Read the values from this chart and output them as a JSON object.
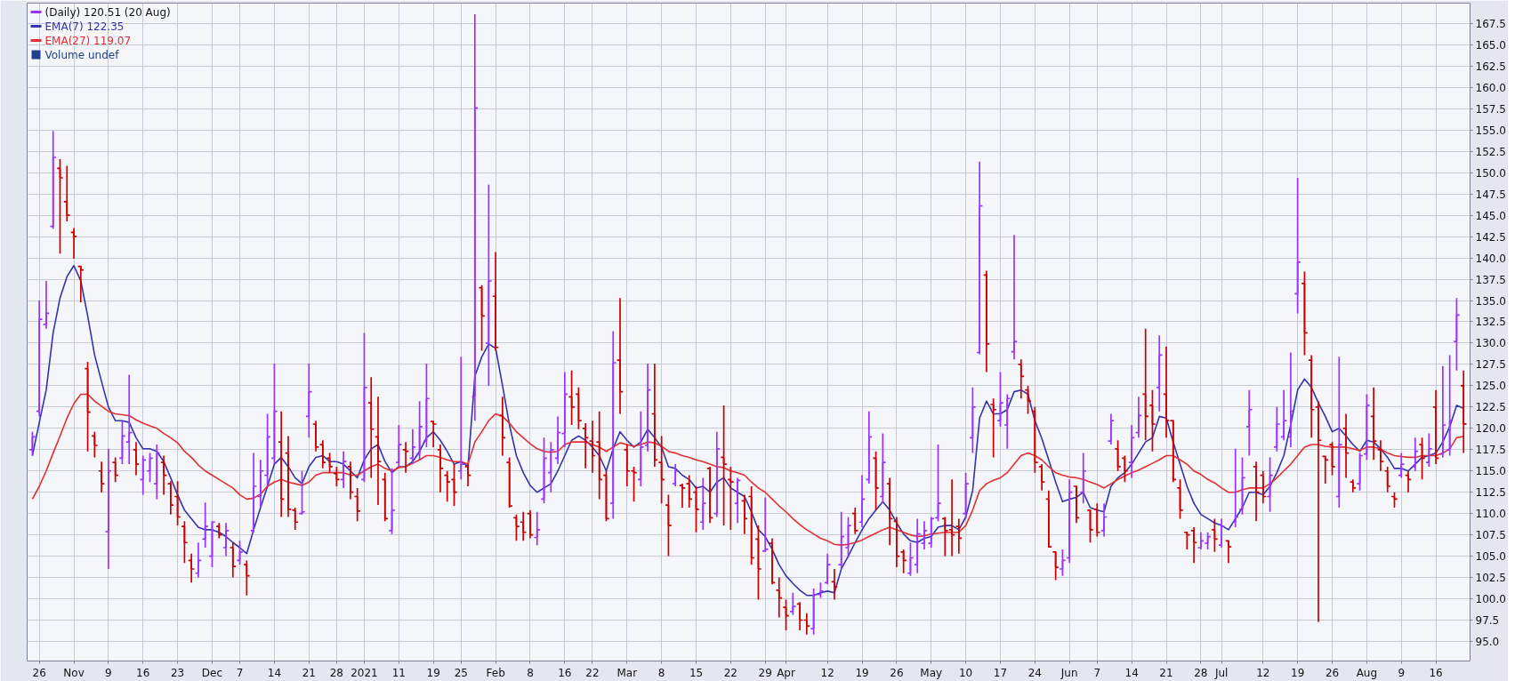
{
  "chart_data": {
    "type": "candlestick",
    "title": "(Daily) 120.51 (20 Aug)",
    "categories": [
      null,
      "26",
      null,
      null,
      null,
      null,
      "Nov",
      null,
      null,
      null,
      null,
      "9",
      null,
      null,
      null,
      null,
      "16",
      null,
      null,
      null,
      null,
      "23",
      null,
      null,
      null,
      null,
      "Dec",
      null,
      null,
      null,
      "7",
      null,
      null,
      null,
      null,
      "14",
      null,
      null,
      null,
      null,
      "21",
      null,
      null,
      null,
      "28",
      null,
      null,
      null,
      "2021",
      null,
      null,
      null,
      null,
      "11",
      null,
      null,
      null,
      null,
      "19",
      null,
      null,
      null,
      "25",
      null,
      null,
      null,
      null,
      "Feb",
      null,
      null,
      null,
      null,
      "8",
      null,
      null,
      null,
      null,
      "16",
      null,
      null,
      null,
      "22",
      null,
      null,
      null,
      null,
      "Mar",
      null,
      null,
      null,
      null,
      "8",
      null,
      null,
      null,
      null,
      "15",
      null,
      null,
      null,
      null,
      "22",
      null,
      null,
      null,
      null,
      "29",
      null,
      null,
      "Apr",
      null,
      null,
      null,
      null,
      null,
      "12",
      null,
      null,
      null,
      null,
      "19",
      null,
      null,
      null,
      null,
      "26",
      null,
      null,
      null,
      null,
      "May",
      null,
      null,
      null,
      null,
      "10",
      null,
      null,
      null,
      null,
      "17",
      null,
      null,
      null,
      null,
      "24",
      null,
      null,
      null,
      null,
      "Jun",
      null,
      null,
      null,
      "7",
      null,
      null,
      null,
      null,
      "14",
      null,
      null,
      null,
      null,
      "21",
      null,
      null,
      null,
      null,
      "28",
      null,
      null,
      "Jul",
      null,
      null,
      null,
      null,
      null,
      "12",
      null,
      null,
      null,
      null,
      "19",
      null,
      null,
      null,
      null,
      "26",
      null,
      null,
      null,
      null,
      "Aug",
      null,
      null,
      null,
      null,
      "9",
      null,
      null,
      null,
      null,
      "16",
      null,
      null,
      null,
      null
    ],
    "ohlc": [
      [
        117.5,
        119.6,
        116.8,
        119.0
      ],
      [
        122.0,
        135.0,
        121.4,
        132.8
      ],
      [
        132.2,
        137.3,
        131.7,
        133.5
      ],
      [
        143.7,
        154.9,
        143.4,
        151.8
      ],
      [
        150.5,
        151.6,
        140.5,
        149.4
      ],
      [
        146.6,
        150.8,
        144.3,
        145.0
      ],
      [
        143.0,
        143.5,
        139.9,
        142.5
      ],
      [
        139.0,
        139.1,
        134.8,
        138.6
      ],
      [
        127.0,
        127.8,
        117.3,
        121.9
      ],
      [
        119.1,
        119.6,
        116.6,
        118.0
      ],
      [
        115.0,
        116.1,
        112.5,
        113.5
      ],
      [
        107.9,
        117.6,
        103.5,
        115.0
      ],
      [
        116.0,
        116.6,
        113.7,
        114.5
      ],
      [
        116.5,
        120.9,
        115.8,
        119.1
      ],
      [
        118.4,
        126.3,
        115.8,
        119.5
      ],
      [
        117.5,
        118.4,
        114.5,
        115.8
      ],
      [
        114.0,
        116.8,
        112.2,
        116.3
      ],
      [
        115.0,
        117.1,
        113.7,
        116.5
      ],
      [
        113.5,
        118.1,
        111.7,
        117.1
      ],
      [
        116.0,
        116.8,
        112.2,
        114.5
      ],
      [
        113.5,
        113.8,
        109.9,
        111.0
      ],
      [
        112.0,
        113.8,
        108.6,
        109.6
      ],
      [
        108.5,
        109.1,
        104.2,
        106.6
      ],
      [
        104.5,
        105.3,
        101.9,
        103.5
      ],
      [
        103.0,
        106.6,
        102.5,
        104.5
      ],
      [
        107.0,
        111.3,
        106.0,
        108.5
      ],
      [
        105.0,
        109.1,
        103.7,
        109.0
      ],
      [
        108.5,
        108.9,
        107.1,
        107.5
      ],
      [
        106.0,
        108.9,
        105.0,
        108.0
      ],
      [
        106.0,
        106.6,
        102.5,
        103.8
      ],
      [
        104.5,
        106.8,
        104.0,
        105.5
      ],
      [
        104.0,
        104.5,
        100.4,
        102.7
      ],
      [
        108.0,
        117.1,
        107.8,
        113.2
      ],
      [
        112.0,
        116.3,
        110.8,
        115.0
      ],
      [
        114.5,
        121.7,
        113.2,
        119.0
      ],
      [
        116.5,
        127.6,
        115.8,
        122.0
      ],
      [
        118.4,
        122.0,
        109.6,
        111.7
      ],
      [
        117.1,
        119.1,
        109.6,
        110.5
      ],
      [
        110.4,
        110.7,
        108.1,
        109.0
      ],
      [
        110.0,
        115.0,
        109.9,
        110.2
      ],
      [
        121.4,
        127.6,
        118.9,
        124.3
      ],
      [
        120.5,
        120.9,
        117.3,
        117.8
      ],
      [
        118.1,
        118.6,
        115.3,
        116.0
      ],
      [
        116.5,
        117.1,
        114.8,
        115.5
      ],
      [
        114.7,
        115.5,
        113.2,
        114.0
      ],
      [
        114.0,
        117.3,
        113.0,
        116.1
      ],
      [
        115.5,
        116.1,
        111.7,
        112.5
      ],
      [
        112.0,
        113.0,
        109.1,
        110.3
      ],
      [
        114.0,
        131.2,
        113.7,
        124.8
      ],
      [
        123.0,
        126.0,
        114.2,
        119.9
      ],
      [
        119.0,
        123.7,
        111.0,
        116.1
      ],
      [
        114.0,
        114.8,
        109.1,
        109.4
      ],
      [
        108.0,
        115.3,
        107.6,
        110.4
      ],
      [
        116.0,
        120.4,
        115.5,
        118.1
      ],
      [
        117.5,
        118.4,
        114.8,
        117.3
      ],
      [
        116.5,
        119.9,
        115.8,
        117.8
      ],
      [
        117.0,
        123.2,
        116.3,
        120.2
      ],
      [
        118.5,
        127.6,
        117.8,
        123.5
      ],
      [
        120.8,
        120.9,
        117.8,
        120.5
      ],
      [
        117.5,
        118.1,
        112.5,
        115.3
      ],
      [
        114.5,
        115.0,
        111.4,
        113.7
      ],
      [
        114.0,
        115.8,
        110.9,
        112.5
      ],
      [
        115.0,
        128.4,
        114.0,
        115.8
      ],
      [
        115.5,
        115.8,
        113.2,
        114.5
      ],
      [
        123.7,
        168.6,
        120.9,
        157.6
      ],
      [
        136.5,
        136.8,
        129.1,
        133.2
      ],
      [
        130.0,
        148.6,
        125.0,
        137.3
      ],
      [
        135.5,
        140.7,
        129.1,
        129.5
      ],
      [
        121.5,
        123.7,
        116.8,
        118.9
      ],
      [
        116.0,
        116.6,
        110.7,
        110.9
      ],
      [
        109.5,
        109.9,
        106.8,
        108.5
      ],
      [
        109.0,
        110.2,
        106.8,
        107.8
      ],
      [
        110.0,
        110.4,
        107.1,
        107.5
      ],
      [
        107.2,
        110.2,
        106.3,
        108.1
      ],
      [
        111.7,
        118.9,
        111.2,
        116.5
      ],
      [
        114.8,
        118.4,
        112.5,
        117.5
      ],
      [
        116.5,
        121.4,
        115.8,
        119.5
      ],
      [
        119.4,
        126.6,
        117.8,
        124.0
      ],
      [
        123.7,
        126.8,
        120.4,
        122.5
      ],
      [
        124.0,
        124.8,
        119.9,
        120.9
      ],
      [
        120.0,
        120.6,
        115.3,
        118.9
      ],
      [
        118.5,
        120.9,
        114.8,
        116.8
      ],
      [
        118.4,
        122.0,
        111.7,
        114.0
      ],
      [
        114.5,
        115.0,
        109.1,
        109.4
      ],
      [
        111.2,
        131.4,
        109.4,
        127.7
      ],
      [
        128.0,
        135.3,
        121.7,
        124.3
      ],
      [
        117.5,
        118.1,
        113.2,
        115.0
      ],
      [
        115.0,
        115.5,
        111.4,
        114.8
      ],
      [
        114.0,
        122.0,
        113.2,
        117.8
      ],
      [
        118.0,
        127.6,
        117.3,
        124.5
      ],
      [
        121.7,
        127.6,
        115.5,
        116.3
      ],
      [
        116.0,
        119.1,
        111.2,
        114.0
      ],
      [
        111.0,
        112.2,
        105.0,
        108.6
      ],
      [
        113.5,
        115.8,
        113.2,
        115.0
      ],
      [
        113.3,
        113.5,
        110.7,
        113.0
      ],
      [
        113.5,
        114.5,
        110.7,
        111.7
      ],
      [
        112.5,
        113.2,
        107.8,
        110.5
      ],
      [
        109.0,
        114.2,
        108.1,
        111.2
      ],
      [
        115.3,
        115.5,
        108.9,
        109.5
      ],
      [
        110.0,
        119.6,
        109.6,
        117.6
      ],
      [
        116.6,
        122.7,
        108.6,
        115.8
      ],
      [
        114.0,
        115.5,
        108.1,
        113.7
      ],
      [
        111.2,
        114.2,
        108.9,
        113.9
      ],
      [
        111.5,
        112.2,
        107.6,
        109.4
      ],
      [
        112.0,
        113.2,
        104.0,
        104.8
      ],
      [
        107.0,
        108.6,
        99.9,
        103.5
      ],
      [
        105.6,
        111.9,
        105.5,
        105.8
      ],
      [
        106.5,
        107.1,
        101.7,
        101.9
      ],
      [
        101.0,
        102.5,
        97.8,
        100.1
      ],
      [
        99.0,
        99.9,
        96.3,
        98.0
      ],
      [
        98.5,
        100.7,
        98.1,
        99.1
      ],
      [
        99.4,
        99.6,
        96.3,
        97.5
      ],
      [
        97.5,
        98.3,
        95.8,
        96.8
      ],
      [
        96.5,
        101.2,
        95.8,
        100.5
      ],
      [
        100.5,
        101.9,
        100.1,
        100.9
      ],
      [
        101.9,
        105.3,
        101.7,
        104.0
      ],
      [
        102.0,
        103.5,
        99.9,
        101.4
      ],
      [
        104.0,
        110.2,
        103.5,
        107.3
      ],
      [
        106.0,
        109.6,
        104.8,
        108.6
      ],
      [
        110.0,
        110.7,
        107.6,
        108.0
      ],
      [
        109.0,
        114.5,
        108.4,
        111.7
      ],
      [
        114.0,
        122.0,
        113.5,
        119.0
      ],
      [
        116.5,
        117.3,
        110.4,
        113.0
      ],
      [
        112.0,
        119.4,
        111.2,
        116.0
      ],
      [
        113.5,
        114.2,
        106.3,
        109.4
      ],
      [
        109.1,
        109.6,
        103.7,
        105.0
      ],
      [
        105.5,
        105.8,
        103.0,
        104.5
      ],
      [
        103.0,
        106.6,
        102.7,
        104.8
      ],
      [
        104.0,
        109.4,
        103.0,
        107.6
      ],
      [
        106.5,
        109.1,
        105.8,
        108.0
      ],
      [
        106.5,
        109.6,
        106.0,
        109.4
      ],
      [
        109.5,
        118.1,
        109.1,
        111.2
      ],
      [
        109.4,
        109.6,
        105.0,
        108.0
      ],
      [
        108.1,
        114.0,
        105.0,
        107.5
      ],
      [
        108.5,
        109.4,
        105.3,
        107.1
      ],
      [
        110.0,
        114.8,
        109.4,
        113.5
      ],
      [
        118.9,
        124.8,
        117.1,
        122.5
      ],
      [
        128.9,
        151.3,
        128.7,
        146.1
      ],
      [
        138.0,
        138.5,
        126.6,
        129.9
      ],
      [
        122.8,
        123.5,
        116.6,
        122.2
      ],
      [
        120.9,
        126.6,
        120.2,
        123.0
      ],
      [
        120.4,
        124.0,
        117.6,
        123.5
      ],
      [
        129.0,
        142.7,
        128.1,
        130.2
      ],
      [
        127.5,
        128.1,
        123.5,
        126.1
      ],
      [
        124.5,
        125.0,
        121.7,
        123.2
      ],
      [
        122.0,
        122.5,
        114.8,
        116.0
      ],
      [
        115.5,
        115.8,
        112.7,
        113.7
      ],
      [
        111.7,
        112.7,
        106.0,
        106.1
      ],
      [
        105.5,
        105.5,
        102.2,
        103.7
      ],
      [
        103.5,
        105.8,
        102.7,
        104.5
      ],
      [
        104.8,
        114.0,
        104.2,
        112.5
      ],
      [
        113.2,
        113.2,
        108.9,
        109.5
      ],
      [
        112.5,
        117.1,
        111.2,
        115.0
      ],
      [
        110.4,
        110.4,
        106.6,
        108.1
      ],
      [
        110.5,
        111.2,
        107.3,
        107.8
      ],
      [
        108.0,
        111.2,
        107.3,
        109.6
      ],
      [
        118.5,
        121.7,
        118.1,
        120.9
      ],
      [
        117.6,
        118.6,
        115.0,
        115.5
      ],
      [
        116.5,
        116.8,
        113.7,
        115.0
      ],
      [
        116.0,
        120.4,
        114.2,
        118.9
      ],
      [
        119.5,
        123.7,
        118.9,
        121.5
      ],
      [
        124.0,
        131.7,
        118.6,
        121.4
      ],
      [
        122.7,
        124.5,
        117.3,
        120.5
      ],
      [
        124.8,
        130.9,
        122.0,
        128.6
      ],
      [
        124.0,
        129.6,
        118.9,
        120.9
      ],
      [
        120.9,
        120.9,
        113.7,
        114.0
      ],
      [
        113.0,
        114.0,
        109.4,
        110.4
      ],
      [
        107.8,
        107.8,
        105.8,
        107.5
      ],
      [
        108.0,
        108.4,
        104.2,
        106.6
      ],
      [
        106.0,
        107.8,
        105.8,
        106.8
      ],
      [
        106.5,
        107.8,
        105.8,
        107.3
      ],
      [
        108.1,
        109.4,
        105.5,
        107.0
      ],
      [
        106.3,
        109.4,
        106.0,
        108.5
      ],
      [
        106.8,
        106.8,
        104.2,
        106.1
      ],
      [
        109.0,
        117.6,
        108.4,
        109.6
      ],
      [
        110.5,
        116.6,
        109.9,
        114.2
      ],
      [
        120.2,
        124.5,
        116.8,
        122.2
      ],
      [
        115.5,
        116.1,
        109.1,
        112.5
      ],
      [
        114.5,
        115.0,
        111.2,
        112.0
      ],
      [
        112.0,
        116.6,
        110.2,
        114.5
      ],
      [
        117.8,
        122.5,
        117.3,
        120.5
      ],
      [
        119.0,
        124.5,
        118.6,
        120.9
      ],
      [
        119.0,
        128.9,
        117.8,
        122.0
      ],
      [
        135.8,
        149.4,
        133.5,
        139.5
      ],
      [
        137.0,
        138.4,
        128.6,
        131.2
      ],
      [
        128.0,
        128.6,
        118.9,
        122.2
      ],
      [
        122.5,
        123.2,
        97.3,
        118.6
      ],
      [
        116.7,
        116.8,
        113.5,
        116.3
      ],
      [
        118.1,
        118.4,
        114.5,
        115.5
      ],
      [
        112.0,
        128.4,
        110.7,
        118.1
      ],
      [
        120.0,
        121.7,
        114.2,
        117.1
      ],
      [
        113.7,
        114.0,
        112.5,
        113.0
      ],
      [
        113.5,
        117.1,
        112.7,
        116.8
      ],
      [
        117.0,
        124.0,
        116.3,
        122.7
      ],
      [
        121.4,
        124.8,
        116.3,
        118.5
      ],
      [
        117.5,
        118.6,
        115.0,
        116.1
      ],
      [
        115.0,
        115.5,
        112.5,
        113.2
      ],
      [
        112.0,
        112.5,
        110.7,
        111.7
      ],
      [
        114.5,
        117.1,
        114.2,
        115.8
      ],
      [
        114.5,
        115.0,
        112.5,
        114.0
      ],
      [
        115.5,
        118.9,
        115.0,
        117.3
      ],
      [
        118.1,
        118.9,
        114.0,
        116.5
      ],
      [
        116.0,
        119.4,
        115.5,
        117.6
      ],
      [
        122.5,
        124.5,
        115.8,
        116.5
      ],
      [
        117.0,
        127.3,
        116.6,
        120.4
      ],
      [
        117.5,
        128.6,
        116.8,
        120.9
      ],
      [
        130.2,
        135.3,
        126.8,
        133.3
      ],
      [
        125.0,
        126.8,
        117.1,
        120.51
      ]
    ],
    "colors": [
      "#9933ff",
      "#9933ff",
      "#9933ff",
      "#9933ff",
      "#cc0000",
      "#cc0000",
      "#cc0000",
      "#cc0000",
      "#cc0000",
      "#cc0000",
      "#cc0000",
      "#9933ff",
      "#cc0000",
      "#9933ff",
      "#9933ff",
      "#cc0000",
      "#9933ff",
      "#9933ff",
      "#9933ff",
      "#cc0000",
      "#cc0000",
      "#cc0000",
      "#cc0000",
      "#cc0000",
      "#9933ff",
      "#9933ff",
      "#9933ff",
      "#cc0000",
      "#9933ff",
      "#cc0000",
      "#9933ff",
      "#cc0000",
      "#9933ff",
      "#9933ff",
      "#9933ff",
      "#9933ff",
      "#cc0000",
      "#cc0000",
      "#cc0000",
      "#9933ff",
      "#9933ff",
      "#cc0000",
      "#cc0000",
      "#cc0000",
      "#cc0000",
      "#9933ff",
      "#cc0000",
      "#cc0000",
      "#9933ff",
      "#cc0000",
      "#cc0000",
      "#cc0000",
      "#9933ff",
      "#9933ff",
      "#cc0000",
      "#9933ff",
      "#9933ff",
      "#9933ff",
      "#cc0000",
      "#cc0000",
      "#cc0000",
      "#cc0000",
      "#9933ff",
      "#cc0000",
      "#9933ff",
      "#cc0000",
      "#9933ff",
      "#cc0000",
      "#cc0000",
      "#cc0000",
      "#cc0000",
      "#cc0000",
      "#cc0000",
      "#9933ff",
      "#9933ff",
      "#9933ff",
      "#9933ff",
      "#9933ff",
      "#cc0000",
      "#cc0000",
      "#cc0000",
      "#cc0000",
      "#cc0000",
      "#cc0000",
      "#9933ff",
      "#cc0000",
      "#cc0000",
      "#cc0000",
      "#9933ff",
      "#9933ff",
      "#cc0000",
      "#cc0000",
      "#cc0000",
      "#9933ff",
      "#cc0000",
      "#cc0000",
      "#cc0000",
      "#9933ff",
      "#cc0000",
      "#9933ff",
      "#cc0000",
      "#cc0000",
      "#9933ff",
      "#cc0000",
      "#cc0000",
      "#cc0000",
      "#9933ff",
      "#cc0000",
      "#cc0000",
      "#cc0000",
      "#9933ff",
      "#cc0000",
      "#cc0000",
      "#9933ff",
      "#9933ff",
      "#9933ff",
      "#cc0000",
      "#9933ff",
      "#9933ff",
      "#cc0000",
      "#9933ff",
      "#9933ff",
      "#cc0000",
      "#9933ff",
      "#cc0000",
      "#cc0000",
      "#cc0000",
      "#9933ff",
      "#9933ff",
      "#9933ff",
      "#9933ff",
      "#9933ff",
      "#cc0000",
      "#cc0000",
      "#cc0000",
      "#9933ff",
      "#9933ff",
      "#9933ff",
      "#cc0000",
      "#cc0000",
      "#9933ff",
      "#9933ff",
      "#9933ff",
      "#cc0000",
      "#cc0000",
      "#cc0000",
      "#cc0000",
      "#cc0000",
      "#cc0000",
      "#9933ff",
      "#9933ff",
      "#cc0000",
      "#9933ff",
      "#cc0000",
      "#cc0000",
      "#9933ff",
      "#9933ff",
      "#cc0000",
      "#cc0000",
      "#9933ff",
      "#9933ff",
      "#cc0000",
      "#cc0000",
      "#9933ff",
      "#cc0000",
      "#cc0000",
      "#cc0000",
      "#cc0000",
      "#cc0000",
      "#9933ff",
      "#9933ff",
      "#cc0000",
      "#9933ff",
      "#cc0000",
      "#9933ff",
      "#9933ff",
      "#9933ff",
      "#cc0000",
      "#cc0000",
      "#9933ff",
      "#9933ff",
      "#9933ff",
      "#9933ff",
      "#9933ff",
      "#cc0000",
      "#cc0000",
      "#cc0000",
      "#cc0000",
      "#cc0000",
      "#9933ff",
      "#cc0000",
      "#cc0000",
      "#9933ff",
      "#9933ff",
      "#cc0000",
      "#cc0000",
      "#cc0000",
      "#cc0000",
      "#9933ff",
      "#cc0000",
      "#9933ff",
      "#cc0000",
      "#9933ff",
      "#cc0000",
      "#9933ff",
      "#9933ff",
      "#9933ff",
      "#cc0000"
    ],
    "series": [
      {
        "type": "line",
        "name": "EMA(7) 122.35",
        "color": "#3333aa",
        "values": [
          116.8,
          120.7,
          124.5,
          131.2,
          135.3,
          137.8,
          139.1,
          137.3,
          133.2,
          128.6,
          125.5,
          122.5,
          120.9,
          120.9,
          120.7,
          118.9,
          117.6,
          117.6,
          117.3,
          116.1,
          114.2,
          112.2,
          110.4,
          109.4,
          108.4,
          108.1,
          108.1,
          107.8,
          107.3,
          106.6,
          106.0,
          105.3,
          108.1,
          110.7,
          113.2,
          115.8,
          116.6,
          115.5,
          114.2,
          113.5,
          115.5,
          116.6,
          116.8,
          116.1,
          116.1,
          115.8,
          115.0,
          114.2,
          116.3,
          117.6,
          118.1,
          116.1,
          114.8,
          115.5,
          115.5,
          116.1,
          117.3,
          118.9,
          119.6,
          118.6,
          117.3,
          115.8,
          116.1,
          115.5,
          126.1,
          128.4,
          129.9,
          129.4,
          125.0,
          120.4,
          116.8,
          114.8,
          113.3,
          112.5,
          113.0,
          113.5,
          115.0,
          116.8,
          118.6,
          119.1,
          118.6,
          117.8,
          116.8,
          115.0,
          117.6,
          119.6,
          118.6,
          117.8,
          118.4,
          119.9,
          118.9,
          117.8,
          115.5,
          115.3,
          114.5,
          114.0,
          113.0,
          113.2,
          112.5,
          113.7,
          114.2,
          113.0,
          112.5,
          112.0,
          110.2,
          108.1,
          107.3,
          105.8,
          104.0,
          102.7,
          101.8,
          101.0,
          100.4,
          100.4,
          100.7,
          100.9,
          100.7,
          103.5,
          105.0,
          106.6,
          108.1,
          109.4,
          110.4,
          111.4,
          110.4,
          108.9,
          107.6,
          106.8,
          106.6,
          107.1,
          107.3,
          108.4,
          108.6,
          108.6,
          108.1,
          109.6,
          112.7,
          121.2,
          123.2,
          121.7,
          121.7,
          122.2,
          124.3,
          124.5,
          124.0,
          120.9,
          118.8,
          116.3,
          113.7,
          111.4,
          111.7,
          111.9,
          112.5,
          110.7,
          110.4,
          110.2,
          113.2,
          114.2,
          114.8,
          115.8,
          117.1,
          118.4,
          118.9,
          121.4,
          121.2,
          118.4,
          115.8,
          113.2,
          111.2,
          109.9,
          109.4,
          108.9,
          108.6,
          108.1,
          109.4,
          110.7,
          112.5,
          112.5,
          112.2,
          113.2,
          114.8,
          116.8,
          120.4,
          124.5,
          125.8,
          124.8,
          123.0,
          121.4,
          119.6,
          120.0,
          119.1,
          118.1,
          117.3,
          118.6,
          118.4,
          117.6,
          116.6,
          115.3,
          115.3,
          115.0,
          115.8,
          116.6,
          116.8,
          117.1,
          118.4,
          120.2,
          122.7,
          122.35
        ]
      },
      {
        "type": "line",
        "name": "EMA(27) 119.07",
        "color": "#e03030",
        "values": [
          111.7,
          113.2,
          115.0,
          117.1,
          119.1,
          121.2,
          122.9,
          124.0,
          124.0,
          123.2,
          122.6,
          122.0,
          121.7,
          121.6,
          121.5,
          121.0,
          120.6,
          120.3,
          120.0,
          119.4,
          118.9,
          118.3,
          117.3,
          116.6,
          115.7,
          115.0,
          114.5,
          114.0,
          113.5,
          113.0,
          112.2,
          111.7,
          111.8,
          112.3,
          113.2,
          113.7,
          114.0,
          113.7,
          113.5,
          113.3,
          113.7,
          114.5,
          114.8,
          114.8,
          114.8,
          114.8,
          114.5,
          114.5,
          115.0,
          115.5,
          115.8,
          115.3,
          115.0,
          115.4,
          115.5,
          115.9,
          116.3,
          116.8,
          116.8,
          116.6,
          116.3,
          116.1,
          116.1,
          115.8,
          118.4,
          119.6,
          120.9,
          121.7,
          121.4,
          120.6,
          119.6,
          118.9,
          118.2,
          117.6,
          117.3,
          117.2,
          117.3,
          118.1,
          118.4,
          118.4,
          118.4,
          118.1,
          117.8,
          117.3,
          117.8,
          118.3,
          118.1,
          117.9,
          118.1,
          118.4,
          118.3,
          117.9,
          117.3,
          117.1,
          116.8,
          116.6,
          116.3,
          116.1,
          115.8,
          115.5,
          115.4,
          115.0,
          114.8,
          114.5,
          113.7,
          113.0,
          112.5,
          111.7,
          110.9,
          110.2,
          109.4,
          108.7,
          108.1,
          107.6,
          107.1,
          106.8,
          106.4,
          106.3,
          106.4,
          106.6,
          106.9,
          107.3,
          107.7,
          108.1,
          108.4,
          108.1,
          107.8,
          107.5,
          107.3,
          107.4,
          107.6,
          107.7,
          107.8,
          107.8,
          107.8,
          108.6,
          110.4,
          112.7,
          113.5,
          113.9,
          114.2,
          114.8,
          115.8,
          116.8,
          117.1,
          116.8,
          116.3,
          115.5,
          114.8,
          114.5,
          114.3,
          114.2,
          114.0,
          113.7,
          113.4,
          113.0,
          113.5,
          114.0,
          114.4,
          114.8,
          115.1,
          115.5,
          115.9,
          116.3,
          116.8,
          116.8,
          116.3,
          115.8,
          115.0,
          114.6,
          114.0,
          113.6,
          113.0,
          112.5,
          112.5,
          112.8,
          113.0,
          113.0,
          113.0,
          113.5,
          114.2,
          115.0,
          115.8,
          116.8,
          117.8,
          118.1,
          118.1,
          117.9,
          117.8,
          117.8,
          117.8,
          117.6,
          117.4,
          117.8,
          117.8,
          117.6,
          117.1,
          116.8,
          116.7,
          116.6,
          116.6,
          116.8,
          116.8,
          116.8,
          117.1,
          117.6,
          118.9,
          119.07
        ]
      },
      {
        "type": "bar",
        "name": "Volume undef",
        "color": "#1f3f8f",
        "values": [
          null,
          null,
          null,
          null,
          null,
          null,
          null,
          null,
          null,
          null,
          null,
          null,
          null,
          null,
          null,
          null,
          null,
          null,
          null,
          null,
          null,
          null,
          null,
          null,
          null,
          null,
          null,
          null,
          null,
          null,
          null,
          null,
          null,
          null,
          null,
          null,
          null,
          null,
          null,
          null,
          null,
          null,
          null,
          null,
          null,
          null,
          null,
          null,
          null,
          null,
          null,
          null,
          null,
          null,
          null,
          null,
          null,
          null,
          null,
          null,
          null,
          null,
          null,
          null,
          null,
          null,
          null,
          null,
          null,
          null,
          null,
          null,
          null,
          null,
          null,
          null,
          null,
          null,
          null,
          null,
          null,
          null,
          null,
          null,
          null,
          null,
          null,
          null,
          null,
          null,
          null,
          null,
          null,
          null,
          null,
          null,
          null,
          null,
          null,
          null,
          null,
          null,
          null,
          null,
          null,
          null,
          null,
          null,
          null,
          null,
          null,
          null,
          null,
          null,
          null,
          null,
          null,
          null,
          null,
          null,
          null,
          null,
          null,
          null,
          null,
          null,
          null,
          null,
          null,
          null,
          null,
          null,
          null,
          null,
          null,
          null,
          null,
          null,
          null,
          null,
          null,
          null,
          null,
          null,
          null,
          null,
          null,
          null,
          null,
          null,
          null,
          null,
          null,
          null,
          null,
          null,
          null,
          null,
          null,
          null,
          null,
          null,
          null,
          null,
          null,
          null,
          null,
          null,
          null,
          null,
          null,
          null,
          null,
          null,
          null,
          null,
          null,
          null,
          null,
          null,
          null,
          null,
          null,
          null,
          null,
          null,
          null,
          null,
          null,
          null,
          null,
          null,
          null,
          null,
          null,
          null,
          null,
          null,
          null,
          null,
          null,
          null,
          null,
          null,
          null,
          null,
          null,
          null
        ]
      }
    ],
    "ylim": [
      92.7,
      169.9
    ],
    "yticks": [
      {
        "value": 95,
        "label": "95.0"
      },
      {
        "value": 97.5,
        "label": "97.5"
      },
      {
        "value": 100,
        "label": "100.0"
      },
      {
        "value": 102.5,
        "label": "102.5"
      },
      {
        "value": 105,
        "label": "105.0"
      },
      {
        "value": 107.5,
        "label": "107.5"
      },
      {
        "value": 110,
        "label": "110.0"
      },
      {
        "value": 112.5,
        "label": "112.5"
      },
      {
        "value": 115,
        "label": "115.0"
      },
      {
        "value": 117.5,
        "label": "117.5"
      },
      {
        "value": 120,
        "label": "120.0"
      },
      {
        "value": 122.5,
        "label": "122.5"
      },
      {
        "value": 125,
        "label": "125.0"
      },
      {
        "value": 127.5,
        "label": "127.5"
      },
      {
        "value": 130,
        "label": "130.0"
      },
      {
        "value": 132.5,
        "label": "132.5"
      },
      {
        "value": 135,
        "label": "135.0"
      },
      {
        "value": 137.5,
        "label": "137.5"
      },
      {
        "value": 140,
        "label": "140.0"
      },
      {
        "value": 142.5,
        "label": "142.5"
      },
      {
        "value": 145,
        "label": "145.0"
      },
      {
        "value": 147.5,
        "label": "147.5"
      },
      {
        "value": 150,
        "label": "150.0"
      },
      {
        "value": 152.5,
        "label": "152.5"
      },
      {
        "value": 155,
        "label": "155.0"
      },
      {
        "value": 157.5,
        "label": "157.5"
      },
      {
        "value": 160,
        "label": "160.0"
      },
      {
        "value": 162.5,
        "label": "162.5"
      },
      {
        "value": 165,
        "label": "165.0"
      },
      {
        "value": 167.5,
        "label": "167.5"
      }
    ],
    "grid": true,
    "legend": "top left"
  }
}
